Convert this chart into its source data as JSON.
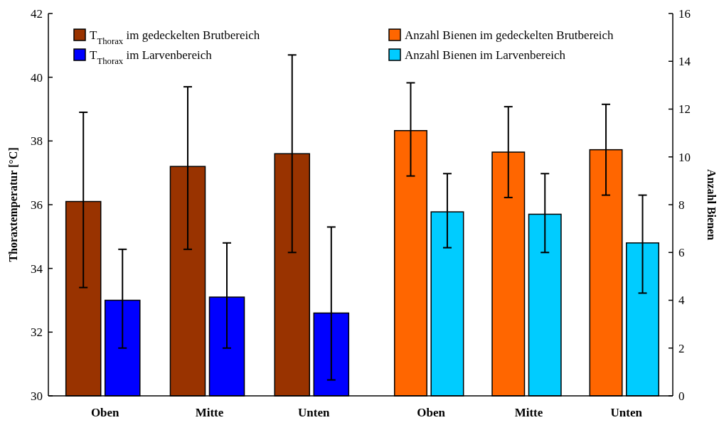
{
  "chart_data": [
    {
      "type": "bar",
      "categories": [
        "Oben",
        "Mitte",
        "Unten"
      ],
      "ylabel": "Thoraxtemperatur [°C]",
      "ylim": [
        30,
        42
      ],
      "yticks": [
        30,
        32,
        34,
        36,
        38,
        40,
        42
      ],
      "legend": "top left",
      "series": [
        {
          "name": "T$_{Thorax}$ im gedeckelten Brutbereich",
          "color": "#993300",
          "values": [
            36.1,
            37.2,
            37.6
          ],
          "errors": [
            [
              33.4,
              38.9
            ],
            [
              34.6,
              39.7
            ],
            [
              34.5,
              40.7
            ]
          ]
        },
        {
          "name": "T$_{Thorax}$ im Larvenbereich",
          "color": "#0000ff",
          "values": [
            33.0,
            33.1,
            32.6
          ],
          "errors": [
            [
              31.5,
              34.6
            ],
            [
              31.5,
              34.8
            ],
            [
              30.5,
              35.3
            ]
          ]
        }
      ]
    },
    {
      "type": "bar",
      "categories": [
        "Oben",
        "Mitte",
        "Unten"
      ],
      "ylabel": "Anzahl Bienen",
      "ylim": [
        0,
        16
      ],
      "yticks": [
        0,
        2,
        4,
        6,
        8,
        10,
        12,
        14,
        16
      ],
      "legend": "top left",
      "series": [
        {
          "name": "Anzahl Bienen im gedeckelten Brutbereich",
          "color": "#ff6600",
          "values": [
            11.1,
            10.2,
            10.3
          ],
          "errors": [
            [
              9.2,
              13.1
            ],
            [
              8.3,
              12.1
            ],
            [
              8.4,
              12.2
            ]
          ]
        },
        {
          "name": "Anzahl Bienen im Larvenbereich",
          "color": "#00ccff",
          "values": [
            7.7,
            7.6,
            6.4
          ],
          "errors": [
            [
              6.2,
              9.3
            ],
            [
              6.0,
              9.3
            ],
            [
              4.3,
              8.4
            ]
          ]
        }
      ]
    }
  ]
}
